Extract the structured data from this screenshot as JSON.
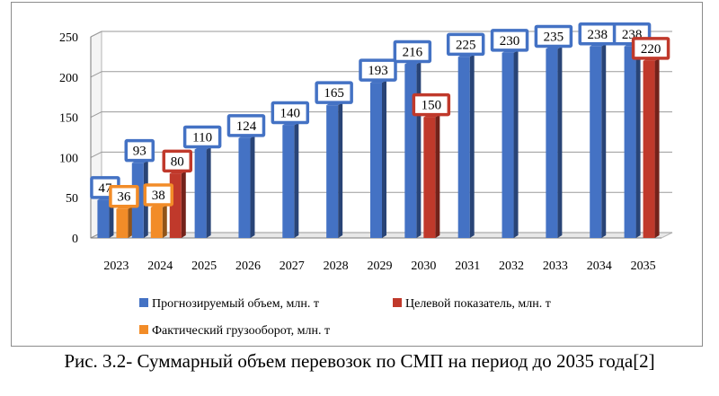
{
  "caption": "Рис. 3.2- Суммарный объем перевозок по СМП на период до 2035 года[2]",
  "colors": {
    "forecast": "#4472c4",
    "target": "#c0392b",
    "actual": "#f28c28",
    "label_text": "#000000"
  },
  "chart_data": {
    "type": "bar",
    "categories": [
      "2023",
      "2024",
      "2025",
      "2026",
      "2027",
      "2028",
      "2029",
      "2030",
      "2031",
      "2032",
      "2033",
      "2034",
      "2035"
    ],
    "ylim": [
      0,
      250
    ],
    "yticks": [
      0,
      50,
      100,
      150,
      200,
      250
    ],
    "grid": true,
    "legend_position": "bottom",
    "series": [
      {
        "name": "Прогнозируемый объем, млн. т",
        "key": "forecast",
        "values": [
          47,
          93,
          110,
          124,
          140,
          165,
          193,
          216,
          225,
          230,
          235,
          238,
          238
        ]
      },
      {
        "name": "Целевой показатель, млн. т",
        "key": "target",
        "values": [
          null,
          80,
          null,
          null,
          null,
          null,
          null,
          150,
          null,
          null,
          null,
          null,
          220
        ]
      },
      {
        "name": "Фактический грузооборот, млн. т",
        "key": "actual",
        "values": [
          36,
          38,
          null,
          null,
          null,
          null,
          null,
          null,
          null,
          null,
          null,
          null,
          null
        ]
      }
    ]
  }
}
